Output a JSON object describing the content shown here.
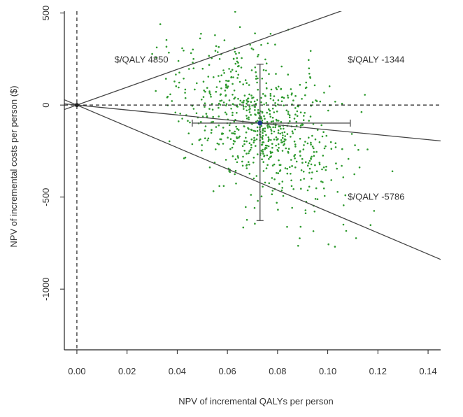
{
  "chart_data": {
    "type": "scatter",
    "title": "",
    "xlabel": "NPV of incremental QALYs per person",
    "ylabel": "NPV of incremental costs per person ($)",
    "xlim": [
      -0.005,
      0.145
    ],
    "ylim": [
      -1330,
      510
    ],
    "x_ticks": [
      0.0,
      0.02,
      0.04,
      0.06,
      0.08,
      0.1,
      0.12,
      0.14
    ],
    "x_tick_labels": [
      "0.00",
      "0.02",
      "0.04",
      "0.06",
      "0.08",
      "0.10",
      "0.12",
      "0.14"
    ],
    "y_ticks": [
      500,
      0,
      -500,
      -1000
    ],
    "y_tick_labels": [
      "500",
      "0",
      "-500",
      "-1000"
    ],
    "grid": false,
    "point_color": "#2e9a2e",
    "line_color": "#444444",
    "reference_lines": [
      {
        "orientation": "horizontal",
        "value": 0,
        "style": "dashed"
      },
      {
        "orientation": "vertical",
        "value": 0,
        "style": "dashed"
      }
    ],
    "icer_lines": [
      {
        "label": "$/QALY 4850",
        "slope": 4850,
        "x_range": [
          -0.005,
          0.107
        ],
        "label_pos": [
          0.015,
          230
        ]
      },
      {
        "label": "$/QALY -1344",
        "slope": -1344,
        "x_range": [
          -0.005,
          0.145
        ],
        "label_pos": [
          0.108,
          230
        ]
      },
      {
        "label": "$/QALY -5786",
        "slope": -5786,
        "x_range": [
          -0.005,
          0.145
        ],
        "label_pos": [
          0.108,
          -515
        ]
      }
    ],
    "mean_point": {
      "x": 0.073,
      "y": -98
    },
    "error_bars": {
      "x_range": [
        0.046,
        0.109
      ],
      "y_range": [
        -628,
        222
      ]
    },
    "scatter_cloud": {
      "n_points": 750,
      "x_mean": 0.073,
      "x_sd": 0.016,
      "y_mean": -98,
      "y_sd": 215,
      "correlation": -0.45,
      "seed": 17
    }
  }
}
